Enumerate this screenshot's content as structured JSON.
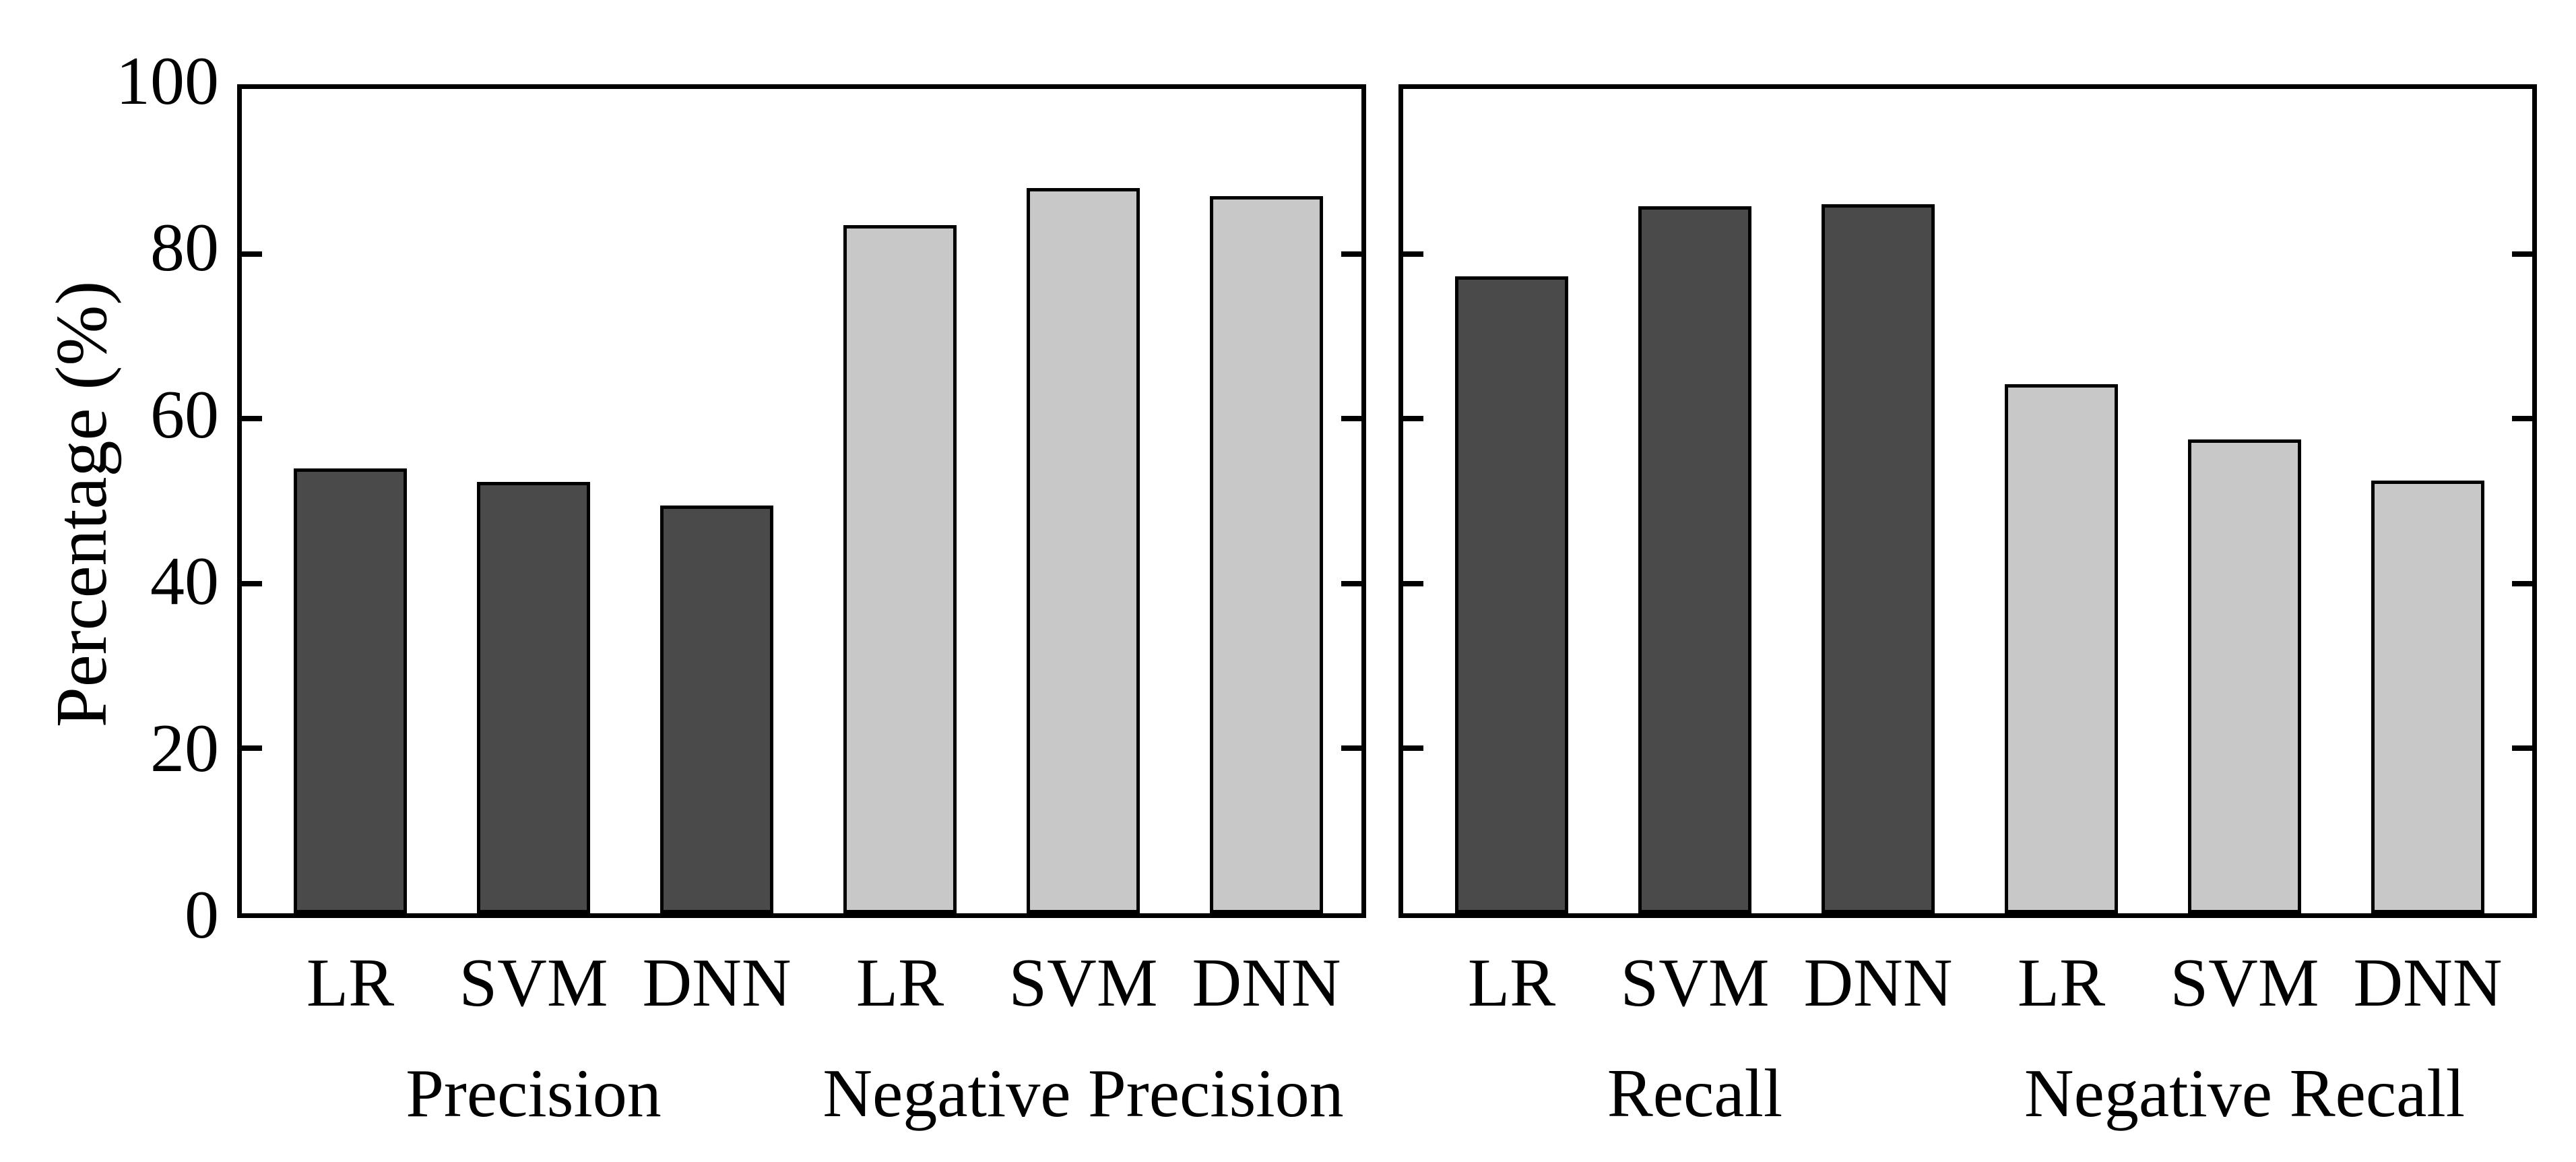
{
  "chart_data": {
    "type": "bar",
    "title": "",
    "ylabel": "Percentage (%)",
    "ylim": [
      0,
      100
    ],
    "yticks": [
      0,
      20,
      40,
      60,
      80,
      100
    ],
    "grid": false,
    "legend": null,
    "bar_colors": {
      "dark": "#4a4a4a",
      "light": "#c8c8c8"
    },
    "bar_edge_color": "#000000",
    "axis_color": "#000000",
    "background_color": "#ffffff",
    "panels": [
      {
        "name": "left-panel",
        "groups": [
          {
            "label": "Precision",
            "shade": "dark",
            "categories": [
              "LR",
              "SVM",
              "DNN"
            ],
            "values": [
              54.0,
              52.3,
              49.5
            ]
          },
          {
            "label": "Negative Precision",
            "shade": "light",
            "categories": [
              "LR",
              "SVM",
              "DNN"
            ],
            "values": [
              83.5,
              88.0,
              87.0
            ]
          }
        ]
      },
      {
        "name": "right-panel",
        "groups": [
          {
            "label": "Recall",
            "shade": "dark",
            "categories": [
              "LR",
              "SVM",
              "DNN"
            ],
            "values": [
              77.3,
              85.8,
              86.0
            ]
          },
          {
            "label": "Negative Recall",
            "shade": "light",
            "categories": [
              "LR",
              "SVM",
              "DNN"
            ],
            "values": [
              64.2,
              57.5,
              52.5
            ]
          }
        ]
      }
    ]
  }
}
